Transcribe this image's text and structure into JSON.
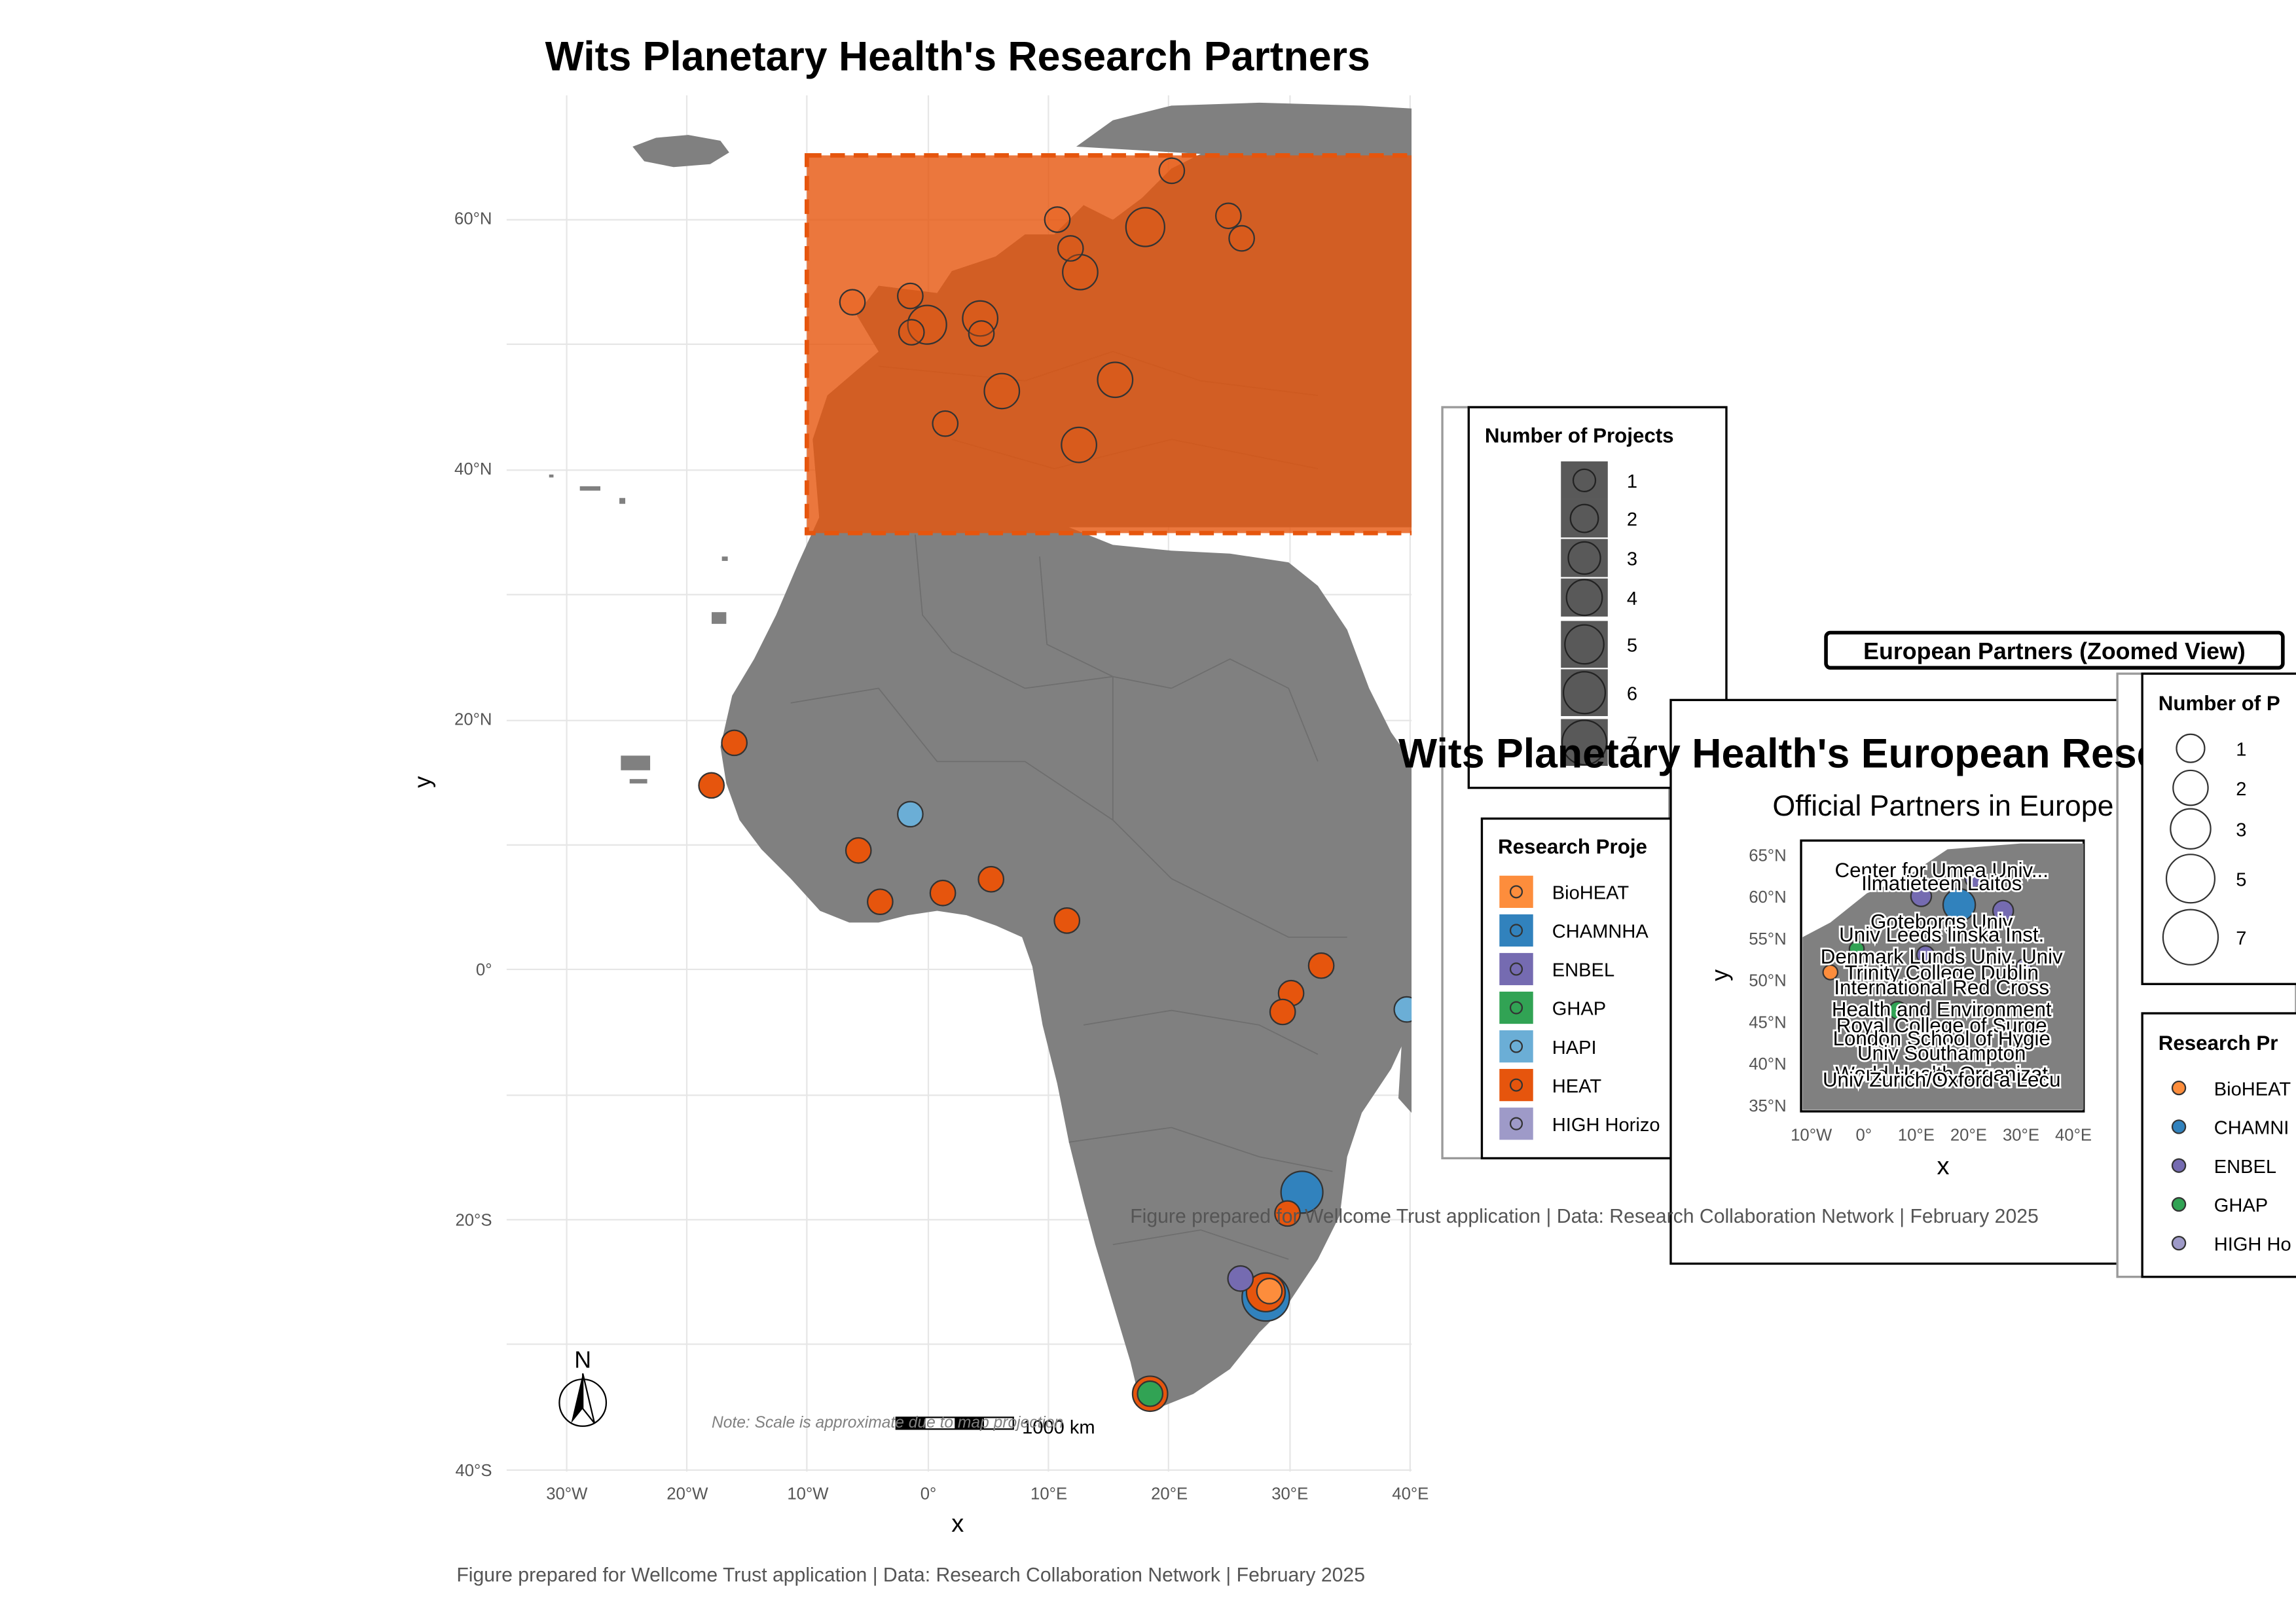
{
  "main_map": {
    "title": "Wits Planetary Health's Research Partners",
    "x_label": "x",
    "y_label": "y",
    "lon_ticks": [
      "30°W",
      "20°W",
      "10°W",
      "0°",
      "10°E",
      "20°E",
      "30°E",
      "40°E"
    ],
    "lat_ticks": [
      "60°N",
      "40°N",
      "20°N",
      "0°",
      "20°S",
      "40°S"
    ],
    "north_arrow_label": "N",
    "scale_label": "1000 km",
    "scale_note": "Note: Scale is approximate due to map projection",
    "caption": "Figure prepared for Wellcome Trust application | Data: Research Collaboration Network | February 2025",
    "europe_highlight_color": "#E6550D",
    "land_color": "#808080"
  },
  "legend_projects": {
    "title": "Number of Projects",
    "items": [
      "1",
      "2",
      "3",
      "4",
      "5",
      "6",
      "7"
    ]
  },
  "legend_projects_inset": {
    "title": "Number of P",
    "items": [
      "1",
      "2",
      "3",
      "5",
      "7"
    ]
  },
  "legend_research": {
    "title": "Research Proje",
    "items": [
      {
        "label": "BioHEAT",
        "color": "#FD8D3C"
      },
      {
        "label": "CHAMNHA",
        "color": "#3182BD"
      },
      {
        "label": "ENBEL",
        "color": "#756BB1"
      },
      {
        "label": "GHAP",
        "color": "#31A354"
      },
      {
        "label": "HAPI",
        "color": "#6BAED6"
      },
      {
        "label": "HEAT",
        "color": "#E6550D"
      },
      {
        "label": "HIGH Horizo",
        "color": "#9E9AC8"
      }
    ]
  },
  "legend_research_inset": {
    "title": "Research Pr",
    "items": [
      {
        "label": "BioHEAT",
        "color": "#FD8D3C"
      },
      {
        "label": "CHAMNI",
        "color": "#3182BD"
      },
      {
        "label": "ENBEL",
        "color": "#756BB1"
      },
      {
        "label": "GHAP",
        "color": "#31A354"
      },
      {
        "label": "HIGH Ho",
        "color": "#9E9AC8"
      }
    ]
  },
  "inset": {
    "badge": "European Partners (Zoomed View)",
    "title": "Wits Planetary Health's European Research",
    "subtitle": "Official Partners in Europe",
    "x_label": "x",
    "y_label": "y",
    "lat_ticks": [
      "65°N",
      "60°N",
      "55°N",
      "50°N",
      "45°N",
      "40°N",
      "35°N"
    ],
    "lon_ticks": [
      "10°W",
      "0°",
      "10°E",
      "20°E",
      "30°E",
      "40°E"
    ],
    "labels": [
      "Center for Umea Univ...",
      "Ilmatieteen Laitos",
      "Goteborgs Univ",
      "Univ Leeds linska Inst.",
      "Denmark Lunds Univ. Univ",
      "Trinity College Dublin",
      "International Red Cross",
      "Health and Environment",
      "Royal College of Surge",
      "London School of Hygie",
      "Univ Southampton",
      "World Health Organizat",
      "Univ Zurich/Oxford a Lecu"
    ],
    "caption": "Figure prepared for Wellcome Trust application | Data: Research Collaboration Network | February 2025"
  },
  "partners": [
    {
      "project": "HEAT",
      "lon": -18.0,
      "lat": 14.7,
      "projects": 1
    },
    {
      "project": "HEAT",
      "lon": -16.1,
      "lat": 18.1,
      "projects": 1
    },
    {
      "project": "HAPI",
      "lon": -1.5,
      "lat": 12.4,
      "projects": 1
    },
    {
      "project": "HEAT",
      "lon": -5.8,
      "lat": 9.5,
      "projects": 1
    },
    {
      "project": "HEAT",
      "lon": -4.0,
      "lat": 5.4,
      "projects": 1
    },
    {
      "project": "HEAT",
      "lon": 1.2,
      "lat": 6.1,
      "projects": 1
    },
    {
      "project": "HEAT",
      "lon": 5.2,
      "lat": 7.2,
      "projects": 1
    },
    {
      "project": "HEAT",
      "lon": 11.5,
      "lat": 3.9,
      "projects": 1
    },
    {
      "project": "HEAT",
      "lon": 32.6,
      "lat": 0.3,
      "projects": 1
    },
    {
      "project": "HEAT",
      "lon": 30.1,
      "lat": -1.9,
      "projects": 1
    },
    {
      "project": "HEAT",
      "lon": 29.4,
      "lat": -3.4,
      "projects": 1
    },
    {
      "project": "HAPI",
      "lon": 39.7,
      "lat": -3.2,
      "projects": 1
    },
    {
      "project": "CHAMNHA",
      "lon": 31.0,
      "lat": -17.8,
      "projects": 5
    },
    {
      "project": "HEAT",
      "lon": 29.8,
      "lat": -19.5,
      "projects": 1
    },
    {
      "project": "ENBEL",
      "lon": 25.9,
      "lat": -24.7,
      "projects": 1
    },
    {
      "project": "CHAMNHA",
      "lon": 28.0,
      "lat": -26.2,
      "projects": 7
    },
    {
      "project": "HEAT",
      "lon": 28.0,
      "lat": -25.8,
      "projects": 4
    },
    {
      "project": "BioHEAT",
      "lon": 28.3,
      "lat": -25.7,
      "projects": 1
    },
    {
      "project": "HEAT",
      "lon": 18.4,
      "lat": -33.9,
      "projects": 3
    },
    {
      "project": "GHAP",
      "lon": 18.4,
      "lat": -33.9,
      "projects": 1
    },
    {
      "project": "HEAT",
      "lon": -6.3,
      "lat": 53.3,
      "projects": 1
    },
    {
      "project": "HEAT",
      "lon": -1.5,
      "lat": 53.8,
      "projects": 1
    },
    {
      "project": "HEAT",
      "lon": -0.1,
      "lat": 51.5,
      "projects": 4
    },
    {
      "project": "HEAT",
      "lon": -1.4,
      "lat": 50.9,
      "projects": 1
    },
    {
      "project": "HEAT",
      "lon": 4.4,
      "lat": 50.8,
      "projects": 1
    },
    {
      "project": "HEAT",
      "lon": 4.3,
      "lat": 52.0,
      "projects": 3
    },
    {
      "project": "HEAT",
      "lon": 6.1,
      "lat": 46.2,
      "projects": 3
    },
    {
      "project": "HEAT",
      "lon": 1.4,
      "lat": 43.6,
      "projects": 1
    },
    {
      "project": "HEAT",
      "lon": 12.5,
      "lat": 41.9,
      "projects": 3
    },
    {
      "project": "HEAT",
      "lon": 15.5,
      "lat": 47.1,
      "projects": 3
    },
    {
      "project": "HEAT",
      "lon": 10.7,
      "lat": 59.9,
      "projects": 1
    },
    {
      "project": "HEAT",
      "lon": 11.8,
      "lat": 57.6,
      "projects": 1
    },
    {
      "project": "HEAT",
      "lon": 12.6,
      "lat": 55.7,
      "projects": 3
    },
    {
      "project": "HEAT",
      "lon": 18.0,
      "lat": 59.3,
      "projects": 4
    },
    {
      "project": "HEAT",
      "lon": 20.2,
      "lat": 63.8,
      "projects": 1
    },
    {
      "project": "HEAT",
      "lon": 24.9,
      "lat": 60.2,
      "projects": 1
    },
    {
      "project": "HEAT",
      "lon": 26.0,
      "lat": 58.4,
      "projects": 1
    }
  ]
}
